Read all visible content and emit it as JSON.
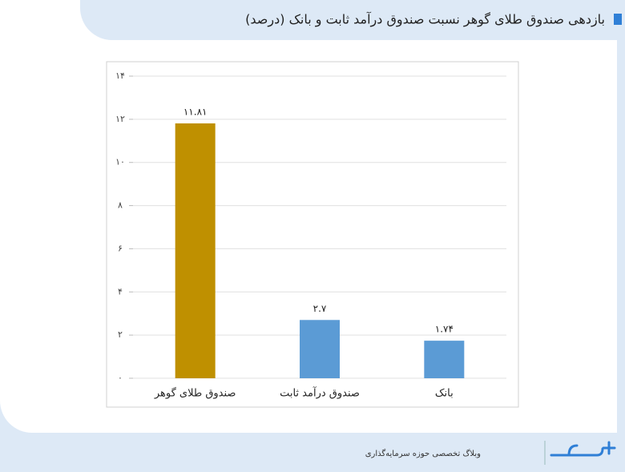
{
  "chart_data": {
    "type": "bar",
    "title": "بازدهی صندوق طلای گوهر نسبت صندوق درآمد ثابت و بانک (درصد)",
    "categories": [
      "صندوق طلای گوهر",
      "صندوق درآمد ثابت",
      "بانک"
    ],
    "values": [
      11.81,
      2.7,
      1.74
    ],
    "value_labels": [
      "۱۱.۸۱",
      "۲.۷",
      "۱.۷۴"
    ],
    "colors": [
      "#bf9000",
      "#5b9bd5",
      "#5b9bd5"
    ],
    "ylim": [
      0,
      14
    ],
    "yticks": [
      {
        "value": 0,
        "label": "۰"
      },
      {
        "value": 2,
        "label": "۲"
      },
      {
        "value": 4,
        "label": "۴"
      },
      {
        "value": 6,
        "label": "۶"
      },
      {
        "value": 8,
        "label": "۸"
      },
      {
        "value": 10,
        "label": "۱۰"
      },
      {
        "value": 12,
        "label": "۱۲"
      },
      {
        "value": 14,
        "label": "۱۴"
      }
    ],
    "grid": true
  },
  "footer": {
    "tagline": "وبلاگ تخصصی حوزه سرمایه‌گذاری"
  }
}
